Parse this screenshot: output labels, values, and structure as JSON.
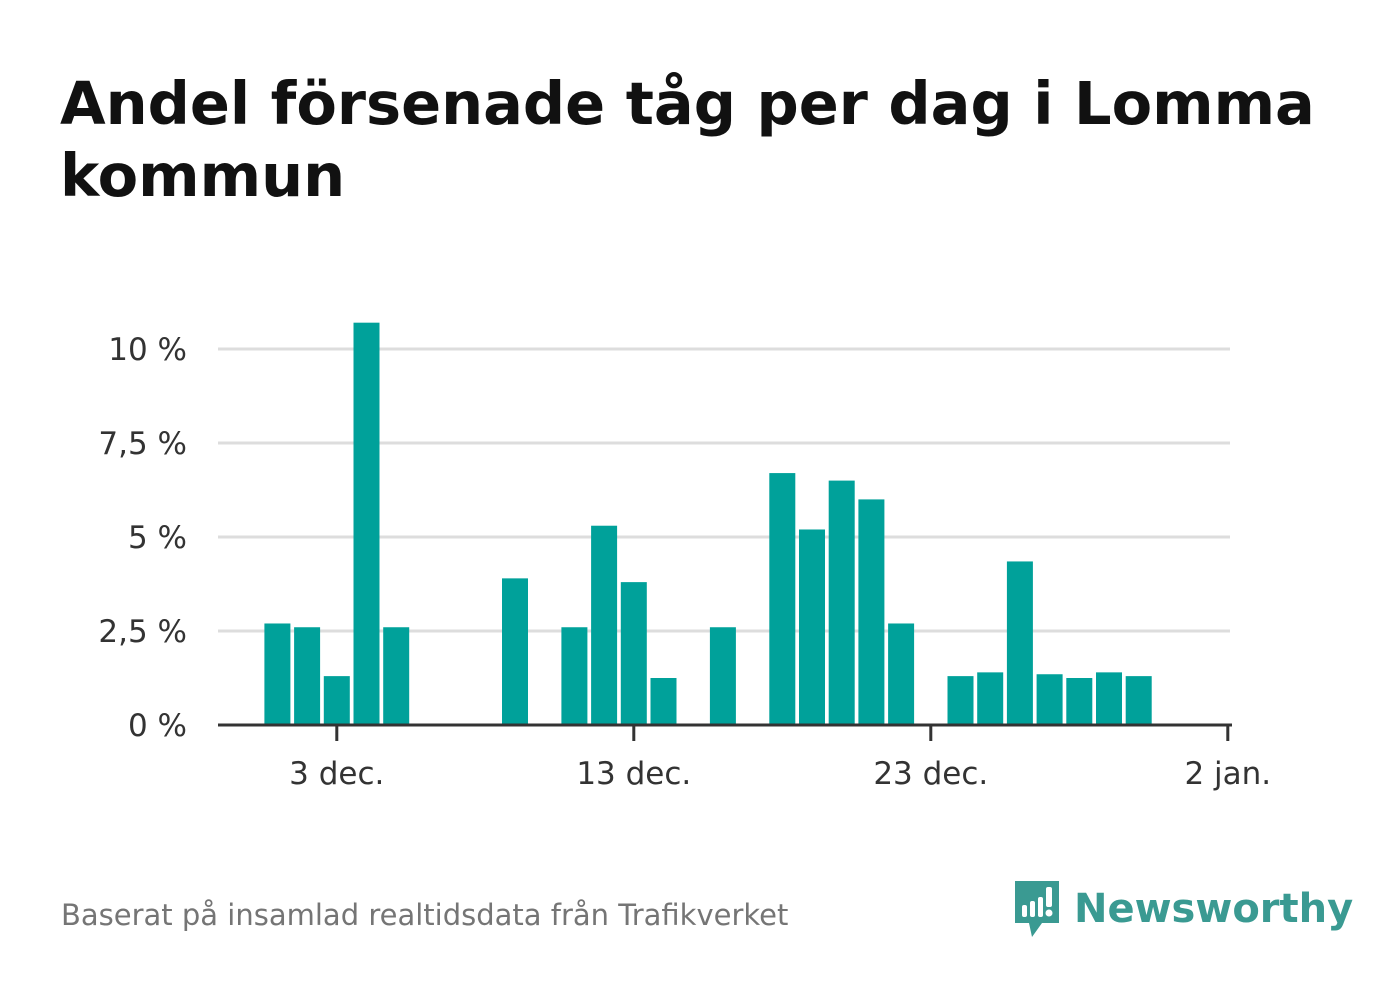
{
  "title": "Andel försenade tåg per dag i Lomma kommun",
  "source": "Baserat på insamlad realtidsdata från Trafikverket",
  "brand": {
    "name": "Newsworthy",
    "icon": "newsworthy-logo-icon",
    "color": "#3a9a92"
  },
  "colors": {
    "bar": "#00a19a",
    "grid": "#dddddd",
    "axis": "#333333",
    "text": "#333333"
  },
  "chart_data": {
    "type": "bar",
    "title": "Andel försenade tåg per dag i Lomma kommun",
    "xlabel": "",
    "ylabel": "",
    "x_ticks": [
      {
        "date": "2023-12-03",
        "label": "3 dec."
      },
      {
        "date": "2023-12-13",
        "label": "13 dec."
      },
      {
        "date": "2023-12-23",
        "label": "23 dec."
      },
      {
        "date": "2024-01-02",
        "label": "2 jan."
      }
    ],
    "x_range": [
      "2023-11-29",
      "2024-01-02"
    ],
    "y_ticks": [
      {
        "value": 0,
        "label": "0 %"
      },
      {
        "value": 2.5,
        "label": "2,5 %"
      },
      {
        "value": 5,
        "label": "5 %"
      },
      {
        "value": 7.5,
        "label": "7,5 %"
      },
      {
        "value": 10,
        "label": "10 %"
      }
    ],
    "ylim": [
      0,
      10
    ],
    "grid": true,
    "series": [
      {
        "values": [
          {
            "date": "2023-12-01",
            "value": 2.7
          },
          {
            "date": "2023-12-02",
            "value": 2.6
          },
          {
            "date": "2023-12-03",
            "value": 1.3
          },
          {
            "date": "2023-12-04",
            "value": 10.7
          },
          {
            "date": "2023-12-05",
            "value": 2.6
          },
          {
            "date": "2023-12-09",
            "value": 3.9
          },
          {
            "date": "2023-12-11",
            "value": 2.6
          },
          {
            "date": "2023-12-12",
            "value": 5.3
          },
          {
            "date": "2023-12-13",
            "value": 3.8
          },
          {
            "date": "2023-12-14",
            "value": 1.25
          },
          {
            "date": "2023-12-16",
            "value": 2.6
          },
          {
            "date": "2023-12-18",
            "value": 6.7
          },
          {
            "date": "2023-12-19",
            "value": 5.2
          },
          {
            "date": "2023-12-20",
            "value": 6.5
          },
          {
            "date": "2023-12-21",
            "value": 6.0
          },
          {
            "date": "2023-12-22",
            "value": 2.7
          },
          {
            "date": "2023-12-24",
            "value": 1.3
          },
          {
            "date": "2023-12-25",
            "value": 1.4
          },
          {
            "date": "2023-12-26",
            "value": 4.35
          },
          {
            "date": "2023-12-27",
            "value": 1.35
          },
          {
            "date": "2023-12-28",
            "value": 1.25
          },
          {
            "date": "2023-12-29",
            "value": 1.4
          },
          {
            "date": "2023-12-30",
            "value": 1.3
          }
        ]
      }
    ]
  }
}
